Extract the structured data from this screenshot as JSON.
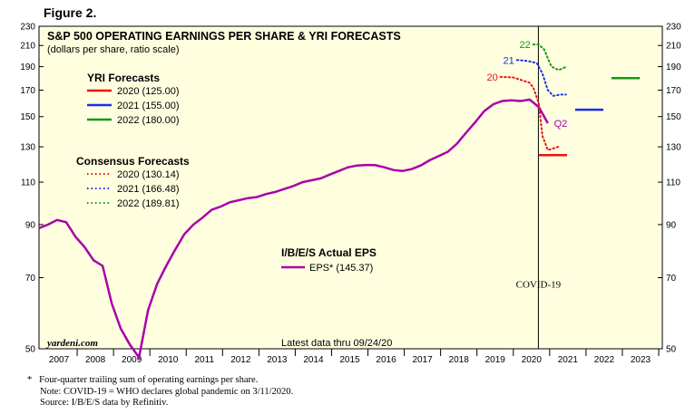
{
  "figure_label": "Figure 2.",
  "chart_data": {
    "type": "line",
    "title": "S&P 500 OPERATING EARNINGS PER SHARE & YRI FORECASTS",
    "subtitle": "(dollars per share, ratio scale)",
    "scale": "log",
    "ylim": [
      50,
      230
    ],
    "y_ticks": [
      50,
      70,
      90,
      110,
      130,
      150,
      170,
      190,
      210,
      230
    ],
    "x_range": [
      2006.45,
      2023.6
    ],
    "x_ticks": [
      "2007",
      "2008",
      "2009",
      "2010",
      "2011",
      "2012",
      "2013",
      "2014",
      "2015",
      "2016",
      "2017",
      "2018",
      "2019",
      "2020",
      "2021",
      "2022",
      "2023"
    ],
    "grid": false,
    "background": "#ffffe0",
    "source_label": "yardeni.com",
    "latest_note": "Latest data thru 09/24/20",
    "event": {
      "x": 2020.19,
      "label": "COVID-19"
    },
    "yri_title": "YRI Forecasts",
    "consensus_title": "Consensus Forecasts",
    "actual_title": "I/B/E/S Actual EPS",
    "series": [
      {
        "name": "EPS* (145.37)",
        "group": "actual",
        "color": "#aa00aa",
        "style": "solid",
        "points": [
          [
            2006.45,
            88.5
          ],
          [
            2006.7,
            90
          ],
          [
            2006.95,
            92
          ],
          [
            2007.2,
            91
          ],
          [
            2007.45,
            85
          ],
          [
            2007.7,
            81
          ],
          [
            2007.95,
            76
          ],
          [
            2008.2,
            74
          ],
          [
            2008.45,
            62
          ],
          [
            2008.7,
            55
          ],
          [
            2008.95,
            51
          ],
          [
            2009.2,
            48
          ],
          [
            2009.45,
            60
          ],
          [
            2009.7,
            68
          ],
          [
            2009.95,
            74
          ],
          [
            2010.2,
            80
          ],
          [
            2010.45,
            86
          ],
          [
            2010.7,
            90
          ],
          [
            2010.95,
            93
          ],
          [
            2011.2,
            96.5
          ],
          [
            2011.45,
            98
          ],
          [
            2011.7,
            100
          ],
          [
            2011.95,
            101
          ],
          [
            2012.2,
            102
          ],
          [
            2012.45,
            102.5
          ],
          [
            2012.7,
            104
          ],
          [
            2012.95,
            105
          ],
          [
            2013.2,
            106.5
          ],
          [
            2013.45,
            108
          ],
          [
            2013.7,
            110
          ],
          [
            2013.95,
            111
          ],
          [
            2014.2,
            112
          ],
          [
            2014.45,
            114
          ],
          [
            2014.7,
            116
          ],
          [
            2014.95,
            118
          ],
          [
            2015.2,
            119
          ],
          [
            2015.45,
            119.3
          ],
          [
            2015.7,
            119.2
          ],
          [
            2015.95,
            118
          ],
          [
            2016.2,
            116.5
          ],
          [
            2016.45,
            116
          ],
          [
            2016.7,
            117
          ],
          [
            2016.95,
            119
          ],
          [
            2017.2,
            122
          ],
          [
            2017.45,
            124.5
          ],
          [
            2017.7,
            127
          ],
          [
            2017.95,
            132
          ],
          [
            2018.2,
            139
          ],
          [
            2018.45,
            146
          ],
          [
            2018.7,
            154
          ],
          [
            2018.95,
            159
          ],
          [
            2019.2,
            161.5
          ],
          [
            2019.45,
            162
          ],
          [
            2019.7,
            161.5
          ],
          [
            2019.95,
            162.5
          ],
          [
            2020.2,
            157
          ],
          [
            2020.45,
            145.37
          ]
        ]
      },
      {
        "name": "2020 (125.00)",
        "group": "yri",
        "color": "#ee1111",
        "style": "solid",
        "marker_label": "",
        "points": [
          [
            2020.2,
            125
          ],
          [
            2020.98,
            125
          ]
        ]
      },
      {
        "name": "2021 (155.00)",
        "group": "yri",
        "color": "#1a2ee8",
        "style": "solid",
        "marker_label": "",
        "points": [
          [
            2021.2,
            155
          ],
          [
            2021.98,
            155
          ]
        ]
      },
      {
        "name": "2022 (180.00)",
        "group": "yri",
        "color": "#119911",
        "style": "solid",
        "marker_label": "",
        "points": [
          [
            2022.2,
            180
          ],
          [
            2022.98,
            180
          ]
        ]
      },
      {
        "name": "2020 (130.14)",
        "group": "consensus",
        "color": "#ee1111",
        "style": "dotted",
        "marker_label": "20",
        "points": [
          [
            2019.15,
            181
          ],
          [
            2019.5,
            180.5
          ],
          [
            2019.75,
            178
          ],
          [
            2019.95,
            176
          ],
          [
            2020.05,
            172
          ],
          [
            2020.2,
            160
          ],
          [
            2020.3,
            137
          ],
          [
            2020.45,
            128
          ],
          [
            2020.6,
            129
          ],
          [
            2020.75,
            130.14
          ]
        ]
      },
      {
        "name": "2021 (166.48)",
        "group": "consensus",
        "color": "#1a2ee8",
        "style": "dotted",
        "marker_label": "21",
        "points": [
          [
            2019.6,
            196
          ],
          [
            2019.8,
            195.5
          ],
          [
            2020.0,
            194.5
          ],
          [
            2020.15,
            193
          ],
          [
            2020.3,
            184
          ],
          [
            2020.45,
            170
          ],
          [
            2020.6,
            165.5
          ],
          [
            2020.8,
            166.5
          ],
          [
            2020.95,
            166.48
          ]
        ]
      },
      {
        "name": "2022 (189.81)",
        "group": "consensus",
        "color": "#119911",
        "style": "dotted",
        "marker_label": "22",
        "points": [
          [
            2020.05,
            211
          ],
          [
            2020.2,
            211
          ],
          [
            2020.35,
            206
          ],
          [
            2020.55,
            190
          ],
          [
            2020.75,
            187
          ],
          [
            2020.95,
            189.81
          ]
        ]
      }
    ],
    "annotations": [
      {
        "text": "Q2",
        "x": 2020.62,
        "y": 143,
        "color": "#aa00aa"
      }
    ]
  },
  "footnotes": {
    "line1_marker": "*",
    "line1": "Four-quarter trailing sum of operating earnings per share.",
    "line2": "Note: COVID-19 = WHO declares global pandemic on 3/11/2020.",
    "line3": "Source: I/B/E/S data by Refinitiv."
  }
}
